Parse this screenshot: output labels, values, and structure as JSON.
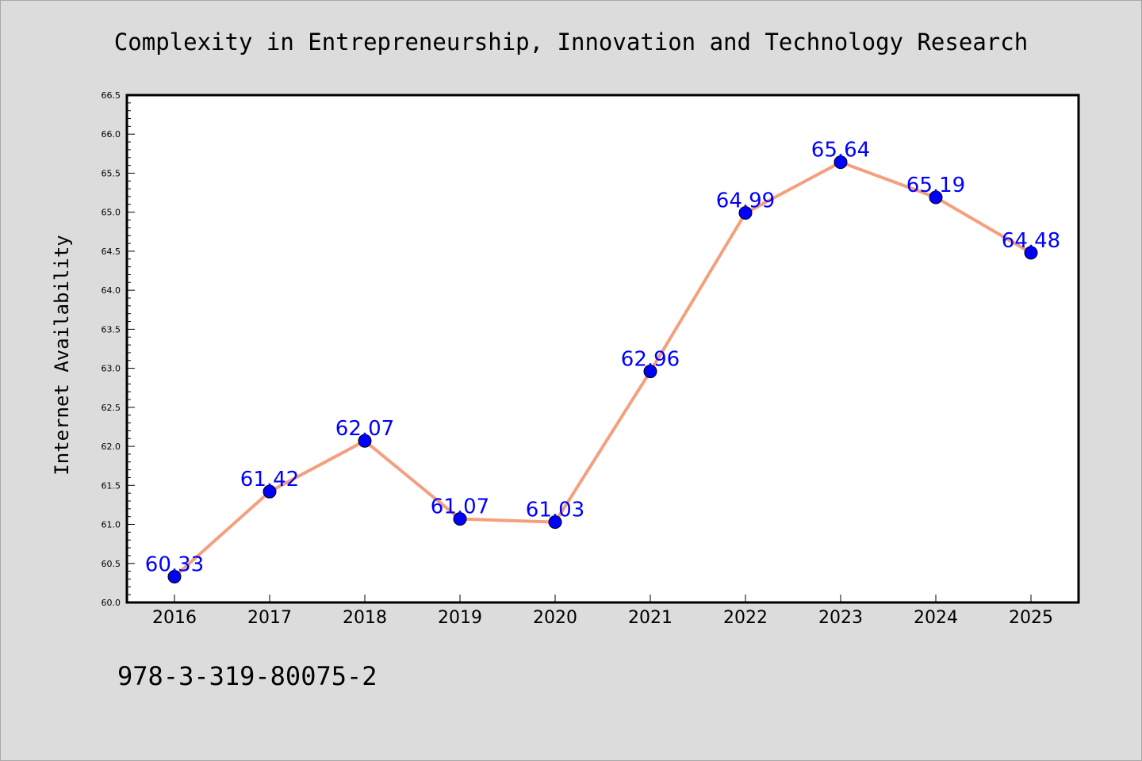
{
  "chart_data": {
    "type": "line",
    "title": "Complexity in Entrepreneurship, Innovation and Technology Research",
    "xlabel": "",
    "ylabel": "Internet Availability",
    "categories": [
      "2016",
      "2017",
      "2018",
      "2019",
      "2020",
      "2021",
      "2022",
      "2023",
      "2024",
      "2025"
    ],
    "values": [
      60.33,
      61.42,
      62.07,
      61.07,
      61.03,
      62.96,
      64.99,
      65.64,
      65.19,
      64.48
    ],
    "data_labels": [
      "60.33",
      "61.42",
      "62.07",
      "61.07",
      "61.03",
      "62.96",
      "64.99",
      "65.64",
      "65.19",
      "64.48"
    ],
    "ylim": [
      60.0,
      66.5
    ],
    "yticks": [
      "60.0",
      "60.5",
      "61.0",
      "61.5",
      "62.0",
      "62.5",
      "63.0",
      "63.5",
      "64.0",
      "64.5",
      "65.0",
      "65.5",
      "66.0",
      "66.5"
    ],
    "grid": false,
    "legend": "none",
    "colors": {
      "line": "#f4a07e",
      "marker": "#0000ff",
      "label": "#0000ff",
      "background": "#dcdcdc",
      "plot_bg": "#ffffff"
    }
  },
  "footer": {
    "isbn": "978-3-319-80075-2"
  }
}
